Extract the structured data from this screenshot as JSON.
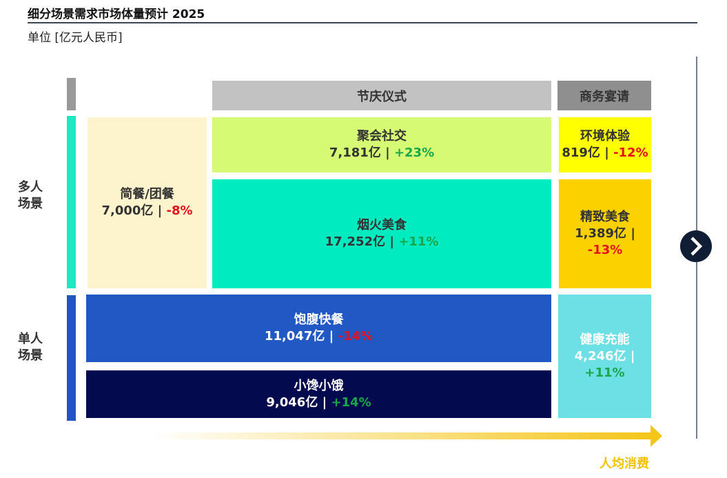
{
  "header": {
    "title": "细分场景需求市场体量预计 2025",
    "unit": "单位 [亿元人民币]"
  },
  "columns": [
    "节庆仪式",
    "商务宴请"
  ],
  "rows": [
    "多人场景",
    "单人场景"
  ],
  "cells": [
    {
      "name": "简餐/团餐",
      "value": "7,000亿",
      "change": "-8%"
    },
    {
      "name": "聚会社交",
      "value": "7,181亿",
      "change": "+23%"
    },
    {
      "name": "烟火美食",
      "value": "17,252亿",
      "change": "+11%"
    },
    {
      "name": "环境体验",
      "value": "819亿",
      "change": "-12%"
    },
    {
      "name": "精致美食",
      "value": "1,389亿",
      "change": "-13%"
    },
    {
      "name": "饱腹快餐",
      "value": "11,047亿",
      "change": "-14%"
    },
    {
      "name": "小馋小饿",
      "value": "9,046亿",
      "change": "+14%"
    },
    {
      "name": "健康充能",
      "value": "4,246亿",
      "change": "+11%"
    }
  ],
  "axis_label": "人均消费"
}
